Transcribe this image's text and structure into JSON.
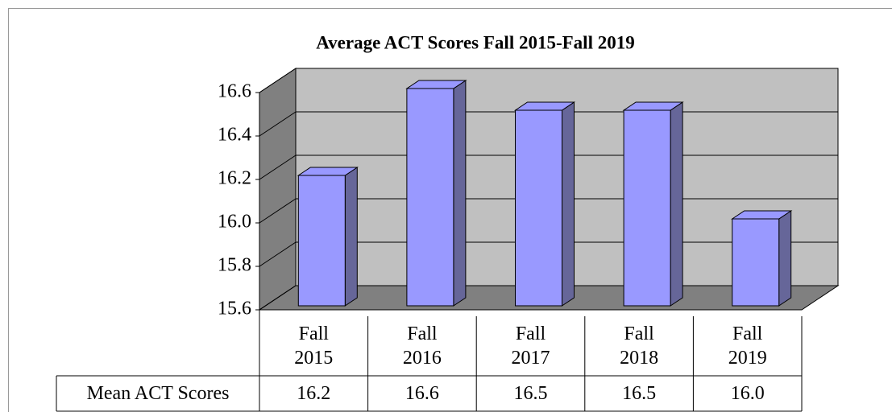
{
  "chart_data": {
    "type": "bar3d",
    "title": "Average ACT Scores Fall 2015-Fall 2019",
    "categories": [
      "Fall 2015",
      "Fall 2016",
      "Fall 2017",
      "Fall 2018",
      "Fall 2019"
    ],
    "series": [
      {
        "name": "Mean ACT Scores",
        "color": "#9999ff",
        "values": [
          16.2,
          16.6,
          16.5,
          16.5,
          16.0
        ],
        "value_labels": [
          "16.2",
          "16.6",
          "16.5",
          "16.5",
          "16.0"
        ]
      }
    ],
    "ylim": [
      15.6,
      16.6
    ],
    "yticks": [
      15.6,
      15.8,
      {
        "value": 16,
        "label": "16.0"
      },
      16.2,
      16.4,
      16.6
    ],
    "grid": true,
    "data_table": true
  }
}
